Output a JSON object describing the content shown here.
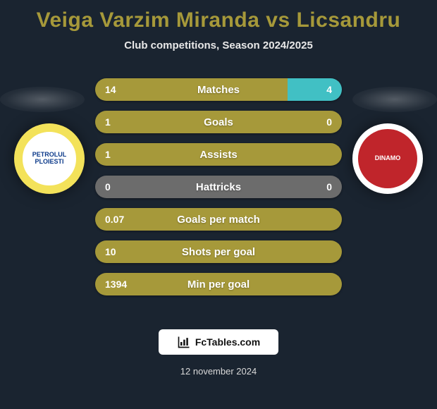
{
  "title_color": "#a6993a",
  "title": "Veiga Varzim Miranda vs Licsandru",
  "subtitle": "Club competitions, Season 2024/2025",
  "left_team": {
    "outer_color": "#f3e25a",
    "inner_color": "#ffffff",
    "text_color": "#0c3a8a",
    "text": "PETROLUL PLOIESTI"
  },
  "right_team": {
    "outer_color": "#ffffff",
    "inner_color": "#c0252b",
    "text_color": "#ffffff",
    "text": "DINAMO"
  },
  "bar_colors": {
    "left": "#a6993a",
    "right": "#41c0c4",
    "neutral": "#6c6c6c"
  },
  "rows": [
    {
      "label": "Matches",
      "left": "14",
      "right": "4",
      "left_pct": 78,
      "right_pct": 22
    },
    {
      "label": "Goals",
      "left": "1",
      "right": "0",
      "left_pct": 100,
      "right_pct": 0
    },
    {
      "label": "Assists",
      "left": "1",
      "right": "",
      "left_pct": 100,
      "right_pct": 0
    },
    {
      "label": "Hattricks",
      "left": "0",
      "right": "0",
      "left_pct": 0,
      "right_pct": 0,
      "neutral": true
    },
    {
      "label": "Goals per match",
      "left": "0.07",
      "right": "",
      "left_pct": 100,
      "right_pct": 0
    },
    {
      "label": "Shots per goal",
      "left": "10",
      "right": "",
      "left_pct": 100,
      "right_pct": 0
    },
    {
      "label": "Min per goal",
      "left": "1394",
      "right": "",
      "left_pct": 100,
      "right_pct": 0
    }
  ],
  "footer_brand": "FcTables.com",
  "date": "12 november 2024"
}
